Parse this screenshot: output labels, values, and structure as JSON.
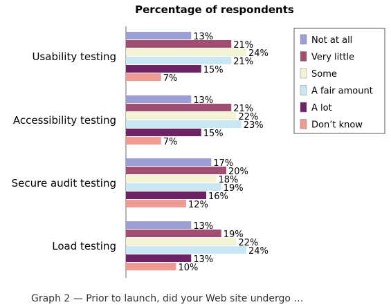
{
  "chart_data": {
    "type": "bar",
    "orientation": "horizontal",
    "title": "Percentage of respondents",
    "categories": [
      "Usability testing",
      "Accessibility testing",
      "Secure audit testing",
      "Load testing"
    ],
    "series": [
      {
        "name": "Not at all",
        "color": "#9b9fd6",
        "values": [
          13,
          13,
          17,
          13
        ]
      },
      {
        "name": "Very little",
        "color": "#a24e72",
        "values": [
          21,
          21,
          20,
          19
        ]
      },
      {
        "name": "Some",
        "color": "#f5f3d5",
        "values": [
          24,
          22,
          18,
          22
        ]
      },
      {
        "name": "A fair amount",
        "color": "#c9e8f3",
        "values": [
          21,
          23,
          19,
          24
        ]
      },
      {
        "name": "A lot",
        "color": "#6e2367",
        "values": [
          15,
          15,
          16,
          13
        ]
      },
      {
        "name": "Don’t know",
        "color": "#f09a92",
        "values": [
          7,
          7,
          12,
          10
        ]
      }
    ],
    "value_suffix": "%",
    "xlim": [
      0,
      27
    ],
    "legend_position": "top-right"
  },
  "caption": "Graph 2 — Prior to launch, did your Web site undergo …"
}
